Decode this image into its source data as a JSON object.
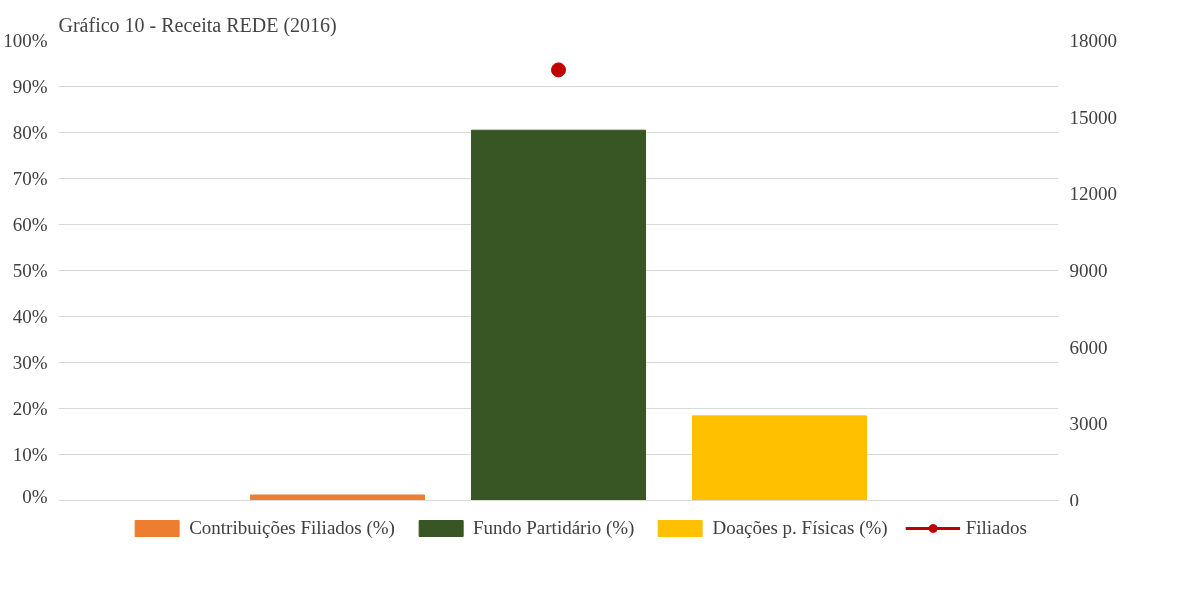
{
  "chart_data": {
    "type": "bar",
    "title": "Gráfico 10 - Receita REDE (2016)",
    "categories": [
      null
    ],
    "series": [
      {
        "name": "Contribuições Filiados (%)",
        "color": "#ed7d31",
        "values": [
          1.2
        ]
      },
      {
        "name": "Fundo Partidário (%)",
        "color": "#375623",
        "values": [
          80.5
        ]
      },
      {
        "name": "Doações p. Físicas (%)",
        "color": "#ffc000",
        "values": [
          18.4
        ]
      },
      {
        "name": "Filiados",
        "color": "#c00000",
        "type": "line",
        "axis": "y2",
        "marker": "circle",
        "values": [
          16850
        ]
      }
    ],
    "ylim": [
      0,
      100
    ],
    "yticks": [
      {
        "value": 0,
        "label": "0%"
      },
      {
        "value": 10,
        "label": "10%"
      },
      {
        "value": 20,
        "label": "20%"
      },
      {
        "value": 30,
        "label": "30%"
      },
      {
        "value": 40,
        "label": "40%"
      },
      {
        "value": 50,
        "label": "50%"
      },
      {
        "value": 60,
        "label": "60%"
      },
      {
        "value": 70,
        "label": "70%"
      },
      {
        "value": 80,
        "label": "80%"
      },
      {
        "value": 90,
        "label": "90%"
      },
      {
        "value": 100,
        "label": "100%"
      }
    ],
    "y2lim": [
      0,
      18000
    ],
    "y2ticks": [
      0,
      3000,
      6000,
      9000,
      12000,
      15000,
      18000
    ],
    "grid": "y",
    "legend": "bottom",
    "tick_labels": "y"
  }
}
